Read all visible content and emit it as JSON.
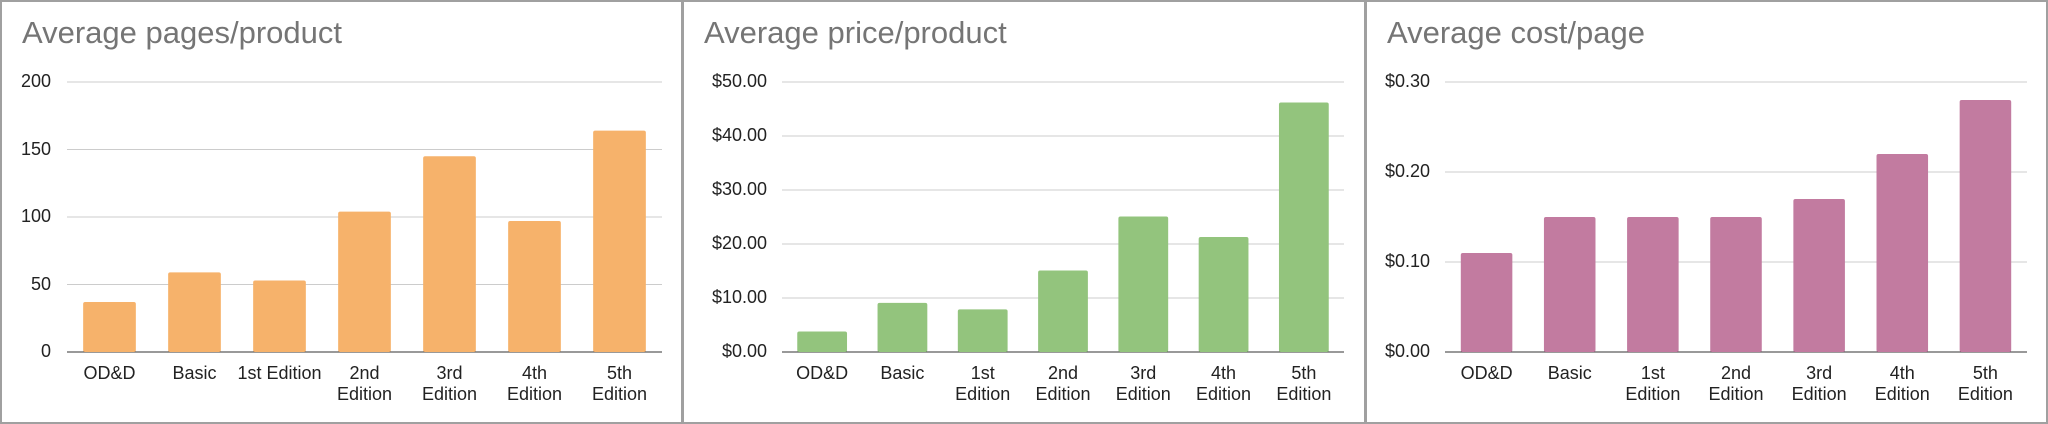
{
  "chart_data": [
    {
      "type": "bar",
      "title": "Average pages/product",
      "categories": [
        "OD&D",
        "Basic",
        "1st Edition",
        "2nd Edition",
        "3rd Edition",
        "4th Edition",
        "5th Edition"
      ],
      "values": [
        37,
        59,
        53,
        104,
        145,
        97,
        164
      ],
      "color": "#f6b26b",
      "ylim": [
        0,
        200
      ],
      "yticks": [
        0,
        50,
        100,
        150,
        200
      ],
      "grid": true
    },
    {
      "type": "bar",
      "title": "Average price/product",
      "categories": [
        "OD&D",
        "Basic",
        "1st Edition",
        "2nd Edition",
        "3rd Edition",
        "4th Edition",
        "5th Edition"
      ],
      "values": [
        3.8,
        9.1,
        7.9,
        15.1,
        25.1,
        21.3,
        46.2
      ],
      "color": "#93c47d",
      "ylim": [
        0,
        50
      ],
      "yticks": [
        {
          "value": 0,
          "label": "$0.00"
        },
        {
          "value": 10,
          "label": "$10.00"
        },
        {
          "value": 20,
          "label": "$20.00"
        },
        {
          "value": 30,
          "label": "$30.00"
        },
        {
          "value": 40,
          "label": "$40.00"
        },
        {
          "value": 50,
          "label": "$50.00"
        }
      ],
      "grid": true
    },
    {
      "type": "bar",
      "title": "Average cost/page",
      "categories": [
        "OD&D",
        "Basic",
        "1st Edition",
        "2nd Edition",
        "3rd Edition",
        "4th Edition",
        "5th Edition"
      ],
      "values": [
        0.11,
        0.15,
        0.15,
        0.15,
        0.17,
        0.22,
        0.28
      ],
      "color": "#c27ba0",
      "ylim": [
        0,
        0.3
      ],
      "yticks": [
        {
          "value": 0,
          "label": "$0.00"
        },
        {
          "value": 0.1,
          "label": "$0.10"
        },
        {
          "value": 0.2,
          "label": "$0.20"
        },
        {
          "value": 0.3,
          "label": "$0.30"
        }
      ],
      "grid": true
    }
  ]
}
